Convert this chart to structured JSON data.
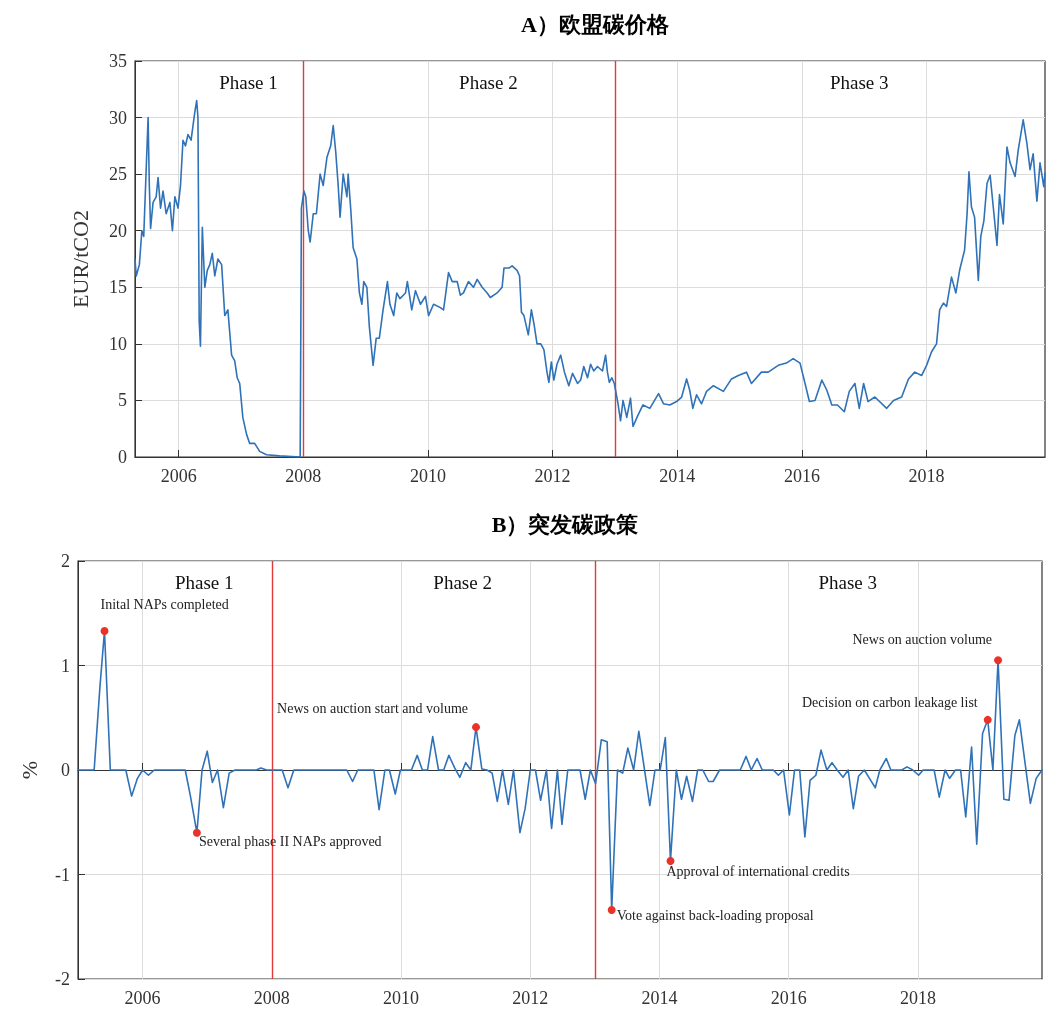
{
  "chart_data": [
    {
      "type": "line",
      "title": "A）欧盟碳价格",
      "ylabel": "EUR/tCO2",
      "x": [
        2005.3,
        2005.32,
        2005.37,
        2005.41,
        2005.44,
        2005.47,
        2005.51,
        2005.53,
        2005.55,
        2005.59,
        2005.64,
        2005.67,
        2005.71,
        2005.75,
        2005.8,
        2005.86,
        2005.9,
        2005.94,
        2005.99,
        2006.03,
        2006.07,
        2006.11,
        2006.15,
        2006.2,
        2006.26,
        2006.29,
        2006.31,
        2006.33,
        2006.35,
        2006.38,
        2006.42,
        2006.46,
        2006.5,
        2006.54,
        2006.58,
        2006.63,
        2006.69,
        2006.74,
        2006.79,
        2006.85,
        2006.9,
        2006.94,
        2006.98,
        2007.03,
        2007.09,
        2007.14,
        2007.22,
        2007.3,
        2007.41,
        2007.62,
        2007.95,
        2007.97,
        2008.01,
        2008.04,
        2008.08,
        2008.11,
        2008.16,
        2008.21,
        2008.27,
        2008.32,
        2008.38,
        2008.44,
        2008.48,
        2008.52,
        2008.56,
        2008.59,
        2008.64,
        2008.7,
        2008.72,
        2008.76,
        2008.8,
        2008.86,
        2008.9,
        2008.94,
        2008.97,
        2009.02,
        2009.06,
        2009.12,
        2009.17,
        2009.22,
        2009.28,
        2009.35,
        2009.39,
        2009.45,
        2009.5,
        2009.55,
        2009.64,
        2009.67,
        2009.74,
        2009.8,
        2009.88,
        2009.96,
        2010.01,
        2010.09,
        2010.2,
        2010.25,
        2010.33,
        2010.39,
        2010.47,
        2010.52,
        2010.57,
        2010.65,
        2010.73,
        2010.79,
        2010.87,
        2010.95,
        2011.0,
        2011.11,
        2011.19,
        2011.22,
        2011.3,
        2011.35,
        2011.43,
        2011.47,
        2011.5,
        2011.54,
        2011.61,
        2011.66,
        2011.7,
        2011.75,
        2011.81,
        2011.86,
        2011.91,
        2011.94,
        2011.98,
        2012.02,
        2012.07,
        2012.13,
        2012.19,
        2012.26,
        2012.32,
        2012.4,
        2012.45,
        2012.5,
        2012.56,
        2012.61,
        2012.66,
        2012.72,
        2012.8,
        2012.85,
        2012.88,
        2012.91,
        2012.95,
        2012.99,
        2013.05,
        2013.09,
        2013.13,
        2013.19,
        2013.25,
        2013.29,
        2013.37,
        2013.45,
        2013.56,
        2013.7,
        2013.78,
        2013.88,
        2013.99,
        2014.07,
        2014.15,
        2014.2,
        2014.25,
        2014.31,
        2014.39,
        2014.47,
        2014.58,
        2014.74,
        2014.87,
        2014.98,
        2015.11,
        2015.19,
        2015.35,
        2015.46,
        2015.62,
        2015.75,
        2015.86,
        2015.97,
        2016.05,
        2016.12,
        2016.21,
        2016.32,
        2016.4,
        2016.48,
        2016.57,
        2016.68,
        2016.76,
        2016.85,
        2016.92,
        2016.99,
        2017.06,
        2017.17,
        2017.36,
        2017.47,
        2017.6,
        2017.71,
        2017.81,
        2017.92,
        2018.0,
        2018.08,
        2018.16,
        2018.21,
        2018.27,
        2018.32,
        2018.4,
        2018.47,
        2018.53,
        2018.61,
        2018.65,
        2018.68,
        2018.72,
        2018.77,
        2018.83,
        2018.87,
        2018.92,
        2018.97,
        2019.02,
        2019.07,
        2019.13,
        2019.17,
        2019.23,
        2019.29,
        2019.34,
        2019.42,
        2019.47,
        2019.55,
        2019.61,
        2019.66,
        2019.71,
        2019.77,
        2019.82,
        2019.88,
        2019.9
      ],
      "series": [
        {
          "color": "#2f72b8",
          "values": [
            17.5,
            16,
            17,
            20,
            19.5,
            24,
            30,
            24,
            20.2,
            22.5,
            23,
            24.7,
            22,
            23.5,
            21.5,
            22.5,
            20,
            23,
            22,
            24,
            28,
            27.5,
            28.5,
            28,
            30.5,
            31.5,
            30,
            12,
            9.8,
            20.3,
            15,
            16.5,
            17,
            18,
            16,
            17.5,
            17,
            12.5,
            13,
            9,
            8.5,
            7,
            6.5,
            3.5,
            2,
            1.2,
            1.2,
            0.5,
            0.2,
            0.1,
            0,
            22,
            23.5,
            23,
            20,
            19,
            21.5,
            21.5,
            25,
            24,
            26.5,
            27.5,
            29.3,
            27,
            24,
            21.2,
            25,
            23,
            25,
            22,
            18.5,
            17.5,
            14.5,
            13.5,
            15.5,
            15,
            11.5,
            8.1,
            10.5,
            10.5,
            13,
            15.5,
            13.5,
            12.5,
            14.5,
            14,
            14.5,
            15.5,
            13,
            14.7,
            13.5,
            14.2,
            12.5,
            13.5,
            13.2,
            13,
            16.3,
            15.5,
            15.5,
            14.3,
            14.5,
            15.5,
            15,
            15.7,
            15,
            14.5,
            14.1,
            14.5,
            15,
            16.7,
            16.7,
            16.9,
            16.5,
            16,
            12.8,
            12.5,
            10.8,
            13,
            11.8,
            10,
            10,
            9.5,
            7.5,
            6.6,
            8.4,
            6.8,
            8.2,
            9,
            7.5,
            6.3,
            7.4,
            6.5,
            6.8,
            8,
            7,
            8.2,
            7.6,
            8,
            7.6,
            9,
            7.5,
            6.6,
            7,
            6.5,
            4.7,
            3.2,
            5.0,
            3.5,
            5.2,
            2.7,
            3.7,
            4.6,
            4.3,
            5.6,
            4.7,
            4.6,
            4.9,
            5.3,
            6.9,
            5.9,
            4.3,
            5.5,
            4.7,
            5.8,
            6.3,
            5.8,
            6.9,
            7.2,
            7.5,
            6.5,
            7.5,
            7.5,
            8.1,
            8.3,
            8.7,
            8.3,
            6.5,
            4.9,
            5.0,
            6.8,
            5.9,
            4.6,
            4.6,
            4.0,
            5.8,
            6.5,
            4.3,
            6.5,
            4.9,
            5.3,
            4.3,
            5.0,
            5.3,
            6.9,
            7.5,
            7.2,
            8.1,
            9.3,
            10.0,
            13.0,
            13.6,
            13.3,
            15.9,
            14.5,
            16.5,
            18.3,
            21.5,
            25.2,
            22.1,
            21.2,
            15.6,
            19.5,
            20.9,
            24.2,
            24.9,
            22.1,
            18.7,
            23.2,
            20.6,
            27.4,
            26.0,
            24.8,
            27.1,
            29.8,
            27.7,
            25.4,
            26.8,
            22.6,
            26.0,
            23.9,
            25.1
          ]
        }
      ],
      "xlim": [
        2005.3,
        2019.9
      ],
      "xticks": [
        2006,
        2008,
        2010,
        2012,
        2014,
        2016,
        2018
      ],
      "ylim": [
        0,
        35
      ],
      "yticks": [
        0,
        5,
        10,
        15,
        20,
        25,
        30,
        35
      ],
      "grid": true,
      "marker": "none",
      "line_style": "solid",
      "ref_lines": [
        {
          "axis": "x",
          "value": 2008,
          "color": "#e03a3a"
        },
        {
          "axis": "x",
          "value": 2013,
          "color": "#e03a3a"
        }
      ],
      "annotations": [
        "Phase 1",
        "Phase 2",
        "Phase 3"
      ]
    },
    {
      "type": "line",
      "title": "B）突发碳政策",
      "ylabel": "%",
      "x": [
        2005.01,
        2005.25,
        2005.34,
        2005.41,
        2005.5,
        2005.74,
        2005.83,
        2005.92,
        2006.0,
        2006.09,
        2006.18,
        2006.66,
        2006.74,
        2006.84,
        2006.92,
        2007.0,
        2007.08,
        2007.16,
        2007.25,
        2007.34,
        2007.43,
        2007.76,
        2007.83,
        2007.92,
        2008.16,
        2008.25,
        2008.34,
        2009.16,
        2009.25,
        2009.33,
        2009.58,
        2009.66,
        2009.75,
        2009.82,
        2009.91,
        2009.99,
        2010.16,
        2010.25,
        2010.33,
        2010.41,
        2010.49,
        2010.58,
        2010.66,
        2010.74,
        2010.83,
        2010.91,
        2011.0,
        2011.08,
        2011.16,
        2011.25,
        2011.33,
        2011.41,
        2011.49,
        2011.57,
        2011.66,
        2011.74,
        2011.84,
        2011.92,
        2012.0,
        2012.08,
        2012.16,
        2012.25,
        2012.33,
        2012.42,
        2012.49,
        2012.58,
        2012.77,
        2012.85,
        2012.93,
        2013.01,
        2013.1,
        2013.19,
        2013.26,
        2013.35,
        2013.43,
        2013.51,
        2013.6,
        2013.68,
        2013.85,
        2013.93,
        2014.01,
        2014.09,
        2014.17,
        2014.26,
        2014.34,
        2014.42,
        2014.51,
        2014.59,
        2014.67,
        2014.76,
        2014.83,
        2014.93,
        2015.25,
        2015.34,
        2015.42,
        2015.51,
        2015.59,
        2015.76,
        2015.84,
        2015.92,
        2016.01,
        2016.09,
        2016.17,
        2016.25,
        2016.33,
        2016.42,
        2016.5,
        2016.59,
        2016.67,
        2016.75,
        2016.84,
        2016.92,
        2017.0,
        2017.08,
        2017.17,
        2017.25,
        2017.34,
        2017.41,
        2017.51,
        2017.58,
        2017.75,
        2017.83,
        2017.92,
        2018.01,
        2018.08,
        2018.25,
        2018.33,
        2018.42,
        2018.49,
        2018.58,
        2018.66,
        2018.74,
        2018.83,
        2018.91,
        2019.0,
        2019.08,
        2019.16,
        2019.24,
        2019.33,
        2019.41,
        2019.5,
        2019.57,
        2019.74,
        2019.83,
        2019.92
      ],
      "series": [
        {
          "color": "#2f72b8",
          "values": [
            0,
            0,
            0.8,
            1.33,
            0,
            0,
            -0.25,
            -0.08,
            0,
            -0.05,
            0,
            0,
            -0.25,
            -0.6,
            0,
            0.18,
            -0.12,
            0,
            -0.36,
            -0.03,
            0,
            0,
            0.02,
            0,
            0,
            -0.17,
            0,
            0,
            -0.11,
            0,
            0,
            -0.38,
            0,
            0,
            -0.23,
            0,
            0,
            0.14,
            0,
            0,
            0.32,
            0,
            0,
            0.14,
            0.02,
            -0.07,
            0.07,
            0,
            0.41,
            0.01,
            0,
            -0.03,
            -0.3,
            0,
            -0.33,
            0,
            -0.6,
            -0.37,
            0,
            0,
            -0.29,
            0,
            -0.56,
            0,
            -0.52,
            0,
            0,
            -0.28,
            0,
            -0.13,
            0.29,
            0.27,
            -1.34,
            0,
            -0.03,
            0.21,
            0,
            0.37,
            -0.34,
            0,
            0,
            0.31,
            -0.87,
            0,
            -0.28,
            -0.06,
            -0.3,
            0,
            0,
            -0.11,
            -0.11,
            0,
            0,
            0.13,
            0,
            0.11,
            0,
            0,
            -0.05,
            0,
            -0.43,
            0,
            0,
            -0.64,
            -0.1,
            -0.05,
            0.19,
            0,
            0.07,
            0,
            -0.07,
            0,
            -0.37,
            -0.06,
            0,
            -0.08,
            -0.17,
            0,
            0.11,
            0,
            0,
            0.03,
            0,
            -0.05,
            0,
            0,
            -0.26,
            0,
            -0.08,
            0,
            0,
            -0.45,
            0.22,
            -0.71,
            0.35,
            0.48,
            0,
            1.05,
            -0.28,
            -0.29,
            0.33,
            0.48,
            -0.32,
            -0.08,
            0
          ]
        }
      ],
      "xlim": [
        2005,
        2019.92
      ],
      "xticks": [
        2006,
        2008,
        2010,
        2012,
        2014,
        2016,
        2018
      ],
      "ylim": [
        -2,
        2
      ],
      "yticks": [
        -2,
        -1,
        0,
        1,
        2
      ],
      "grid": true,
      "marker": "none",
      "line_style": "solid",
      "ref_lines": [
        {
          "axis": "x",
          "value": 2008,
          "color": "#e03a3a"
        },
        {
          "axis": "x",
          "value": 2013,
          "color": "#e03a3a"
        }
      ],
      "annotations": [
        "Phase 1",
        "Phase 2",
        "Phase 3",
        {
          "text": "Inital NAPs completed",
          "x": 2005.41,
          "y": 1.33
        },
        {
          "text": "Several phase II NAPs approved",
          "x": 2006.84,
          "y": -0.6
        },
        {
          "text": "News on auction start and volume",
          "x": 2011.16,
          "y": 0.41
        },
        {
          "text": "Vote against back-loading proposal",
          "x": 2013.26,
          "y": -1.34
        },
        {
          "text": "Approval of international credits",
          "x": 2014.17,
          "y": -0.87
        },
        {
          "text": "Decision on carbon leakage list",
          "x": 2019.08,
          "y": 0.48
        },
        {
          "text": "News on auction volume",
          "x": 2019.24,
          "y": 1.05
        }
      ]
    }
  ]
}
